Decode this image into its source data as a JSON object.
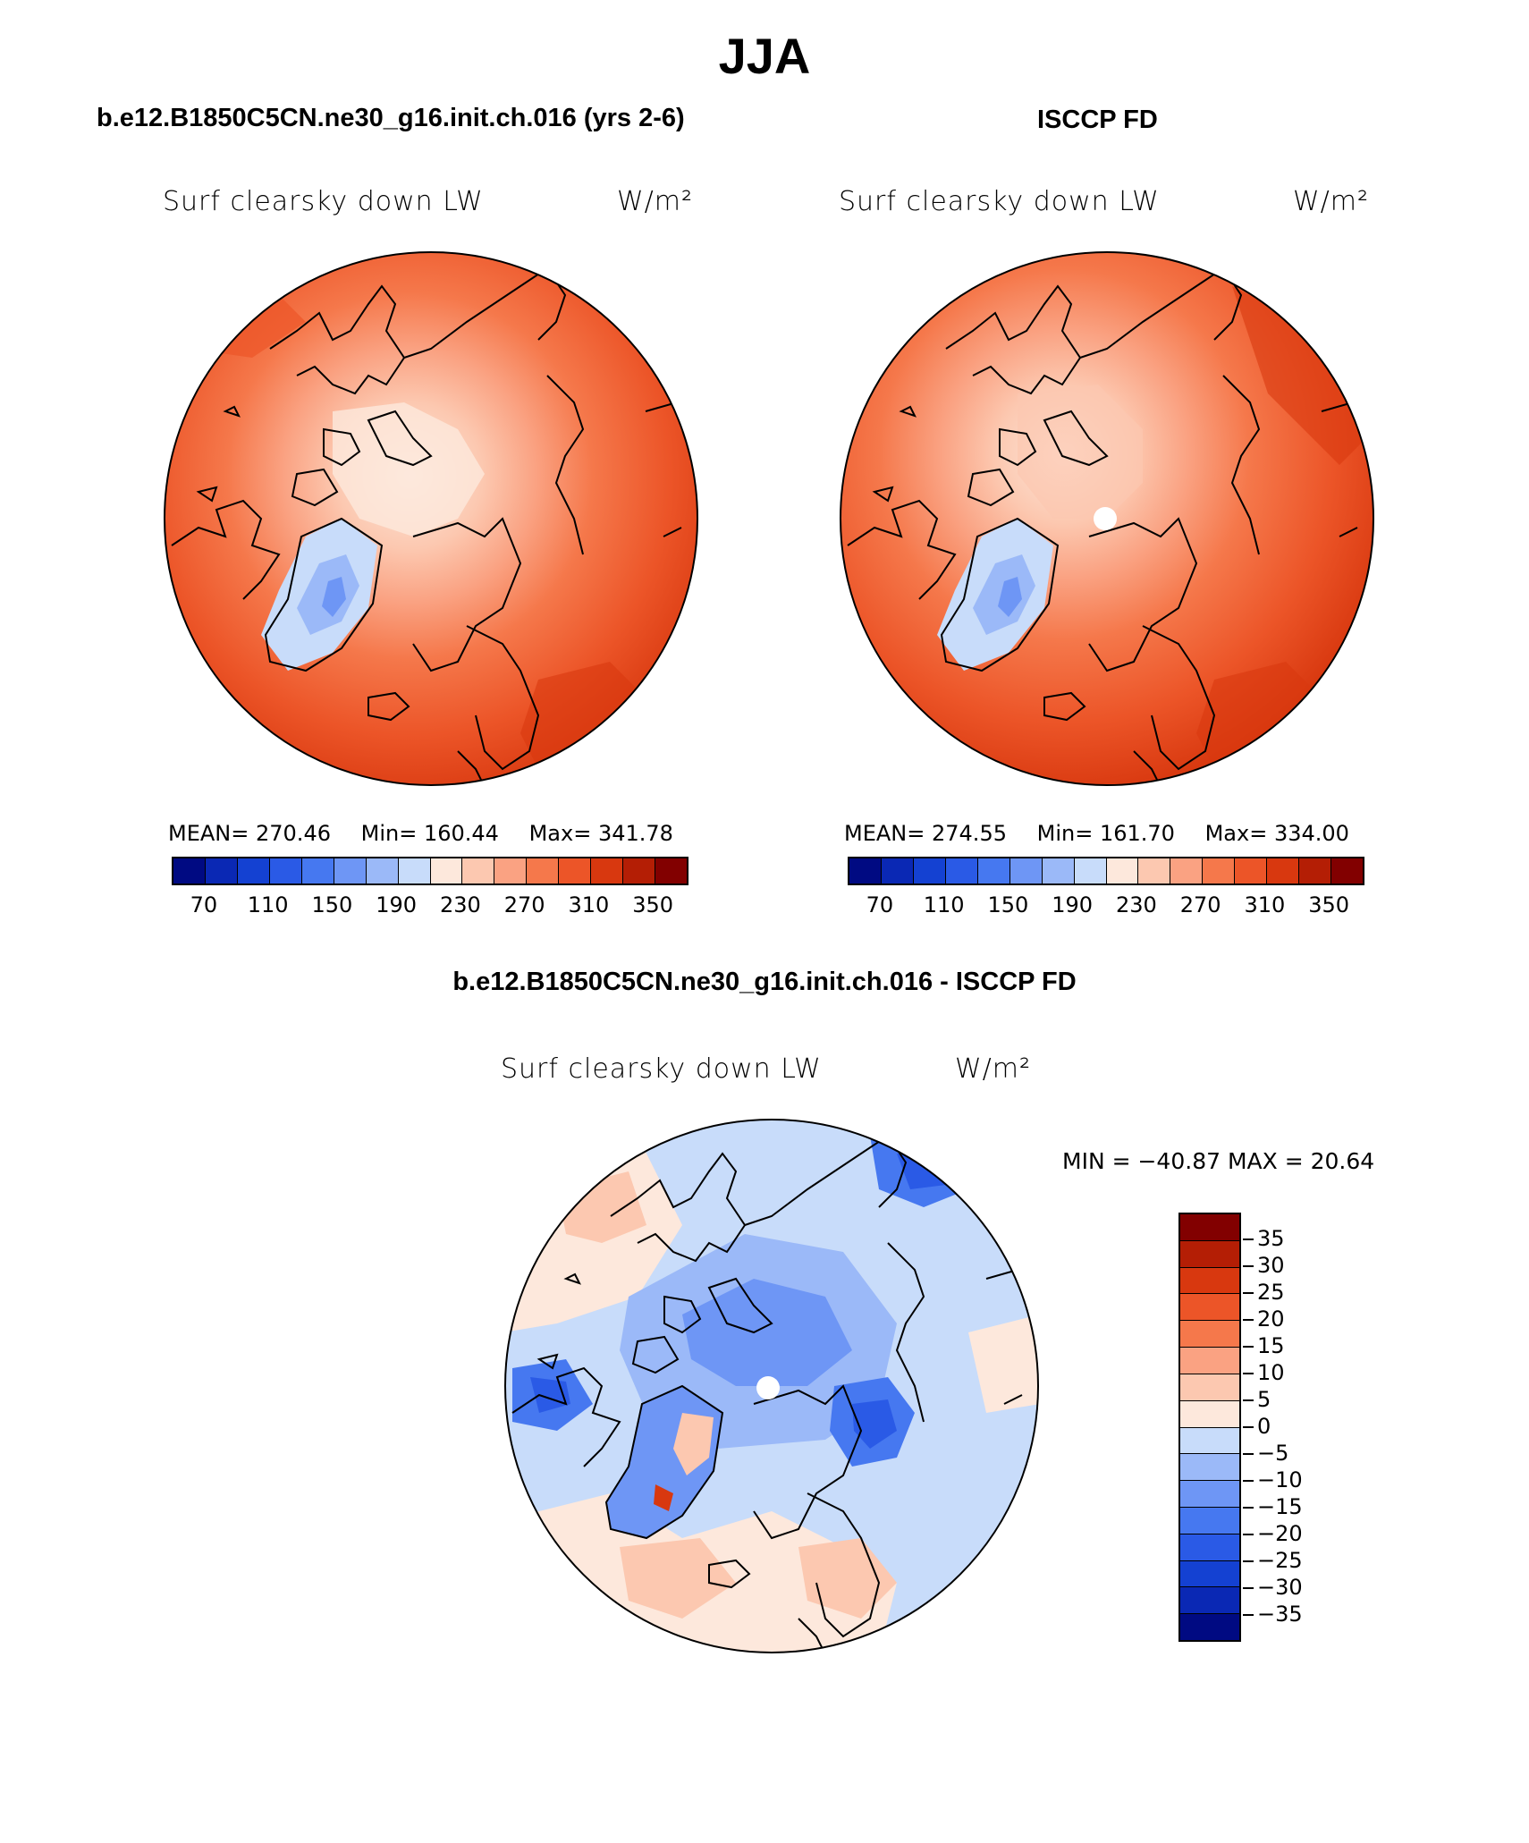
{
  "figure": {
    "title": "JJA",
    "left_panel_title": "b.e12.B1850C5CN.ne30_g16.init.ch.016 (yrs 2-6)",
    "right_panel_title": "ISCCP FD",
    "diff_panel_title": "b.e12.B1850C5CN.ne30_g16.init.ch.016 - ISCCP FD"
  },
  "panels": {
    "model": {
      "variable": "Surf clearsky down LW",
      "units": "W/m²",
      "mean_label": "MEAN=",
      "mean": "270.46",
      "min_label": "Min=",
      "min": "160.44",
      "max_label": "Max=",
      "max": "341.78"
    },
    "obs": {
      "variable": "Surf clearsky down LW",
      "units": "W/m²",
      "mean_label": "MEAN=",
      "mean": "274.55",
      "min_label": "Min=",
      "min": "161.70",
      "max_label": "Max=",
      "max": "334.00"
    },
    "diff": {
      "variable": "Surf clearsky down LW",
      "units": "W/m²",
      "minmax_text": "MIN = −40.87 MAX =   20.64"
    }
  },
  "colorbar_abs": {
    "tick_labels": [
      "70",
      "110",
      "150",
      "190",
      "230",
      "270",
      "310",
      "350"
    ],
    "colors": [
      "#000a82",
      "#0a28b4",
      "#1441d2",
      "#2a5ae6",
      "#4678f0",
      "#6e96f5",
      "#9bb9f8",
      "#c8dcfa",
      "#fde8dc",
      "#fcc8b0",
      "#faa282",
      "#f5784b",
      "#ec5528",
      "#d8380f",
      "#b41e05",
      "#820000"
    ]
  },
  "colorbar_diff": {
    "tick_labels": [
      "35",
      "30",
      "25",
      "20",
      "15",
      "10",
      "5",
      "0",
      "−5",
      "−10",
      "−15",
      "−20",
      "−25",
      "−30",
      "−35"
    ],
    "colors": [
      "#820000",
      "#b41e05",
      "#d8380f",
      "#ec5528",
      "#f5784b",
      "#faa282",
      "#fcc8b0",
      "#fde8dc",
      "#c8dcfa",
      "#9bb9f8",
      "#6e96f5",
      "#4678f0",
      "#2a5ae6",
      "#1441d2",
      "#0a28b4",
      "#000a82"
    ]
  }
}
